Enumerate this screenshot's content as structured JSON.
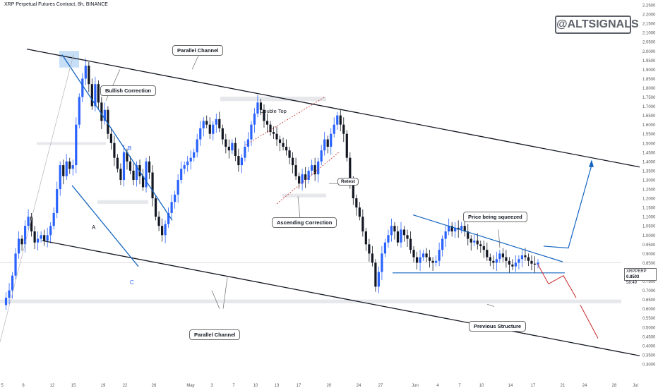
{
  "header": {
    "title": "XRP Perpetual Futures Contract, 8h, BINANCE"
  },
  "brand": {
    "text": "@ALTSIGNALS"
  },
  "price_tag": {
    "symbol": "XRPPERP",
    "price": "0.8503",
    "time": "58:49"
  },
  "annotations": {
    "parallel_channel_top": "Parallel Channel",
    "parallel_channel_bottom": "Parallel Channel",
    "bullish_correction": "Bullish Correction",
    "double_top": "Double Top",
    "retest": "Retest",
    "ascending_correction": "Ascending Correction",
    "price_squeezed": "Price being squeezed",
    "previous_structure": "Previous Structure",
    "wave_a": "A",
    "wave_b": "B",
    "wave_c": "C"
  },
  "colors": {
    "up": "#2962ff",
    "down": "#131722",
    "line": "#131722",
    "accent": "#1565c0",
    "bear": "#c62828"
  },
  "chart_data": {
    "type": "candlestick",
    "title": "XRP Perpetual Futures Contract, 8h, BINANCE",
    "xlabel": "",
    "ylabel": "",
    "ylim": [
      0.3,
      2.25
    ],
    "y_ticks": [
      "2.2500",
      "2.2000",
      "2.1500",
      "2.1000",
      "2.0500",
      "2.0000",
      "1.9500",
      "1.9000",
      "1.8500",
      "1.8000",
      "1.7500",
      "1.7000",
      "1.6500",
      "1.6000",
      "1.5500",
      "1.5000",
      "1.4500",
      "1.4000",
      "1.3500",
      "1.3000",
      "1.2500",
      "1.2000",
      "1.1500",
      "1.1000",
      "1.0500",
      "1.0000",
      "0.9500",
      "0.9000",
      "0.8500",
      "0.8000",
      "0.7500",
      "0.7000",
      "0.6500",
      "0.6000",
      "0.5500",
      "0.5000",
      "0.4500",
      "0.4000",
      "0.3500",
      "0.3000"
    ],
    "x_ticks": [
      "5",
      "8",
      "12",
      "15",
      "19",
      "22",
      "26",
      "May",
      "3",
      "7",
      "10",
      "13",
      "17",
      "20",
      "24",
      "27",
      "Jun",
      "4",
      "7",
      "10",
      "14",
      "17",
      "21",
      "24",
      "28",
      "Jul"
    ],
    "current_price": 0.8503,
    "price_path": [
      [
        0.62,
        0.66,
        0.7,
        0.78,
        0.9,
        0.98,
        0.95,
        1.05,
        1.1,
        1.02,
        0.96,
        0.98,
        1.0,
        0.97,
        1.0,
        1.05,
        1.12,
        1.25,
        1.38,
        1.32,
        1.4,
        1.36,
        1.38,
        1.6,
        1.75,
        1.85,
        1.92,
        1.82,
        1.7,
        1.82,
        1.72,
        1.62,
        1.68,
        1.55,
        1.5,
        1.42,
        1.36,
        1.3,
        1.45,
        1.4,
        1.35,
        1.3,
        1.38,
        1.32,
        1.26,
        1.4,
        1.34,
        1.2,
        1.1,
        1.05,
        1.0,
        1.06,
        1.12,
        1.18,
        1.22,
        1.3,
        1.36,
        1.38,
        1.4,
        1.42,
        1.45,
        1.52,
        1.58,
        1.62,
        1.6,
        1.55,
        1.6,
        1.63,
        1.58,
        1.52,
        1.48,
        1.46,
        1.5,
        1.43,
        1.38,
        1.42,
        1.48,
        1.52,
        1.6,
        1.66,
        1.72,
        1.68,
        1.62,
        1.6,
        1.56,
        1.55,
        1.52,
        1.5,
        1.48,
        1.46,
        1.42,
        1.38,
        1.32,
        1.28,
        1.33,
        1.3,
        1.35,
        1.38,
        1.33,
        1.4,
        1.46,
        1.52,
        1.48,
        1.55,
        1.6,
        1.65,
        1.6,
        1.55,
        1.42,
        1.28,
        1.2,
        1.15,
        1.1,
        1.02,
        0.95,
        0.9,
        0.85,
        0.72,
        0.8,
        0.9,
        0.96,
        1.0,
        1.05,
        1.02,
        0.96,
        1.03,
        1.0,
        0.98,
        0.92,
        0.88,
        0.85,
        0.88,
        0.9,
        0.88,
        0.86,
        0.85,
        0.86,
        0.92,
        0.98,
        1.02,
        1.05,
        1.02,
        1.04,
        1.03,
        1.05,
        1.02,
        0.98,
        0.96,
        0.97,
        0.95,
        0.94,
        0.92,
        0.88,
        0.86,
        0.85,
        0.87,
        0.9,
        0.88,
        0.86,
        0.84,
        0.83,
        0.85,
        0.87,
        0.89,
        0.88,
        0.86,
        0.845,
        0.84,
        0.85
      ]
    ]
  }
}
